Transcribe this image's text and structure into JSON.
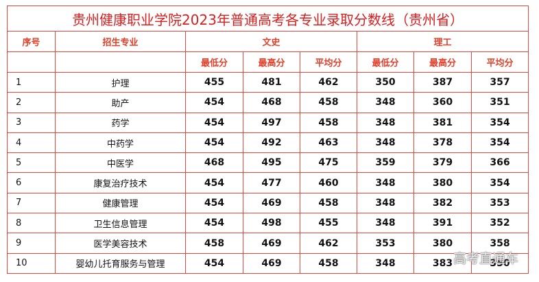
{
  "title": "贵州健康职业学院2023年普通高考各专业录取分数线（贵州省）",
  "header": {
    "row1": [
      "序号",
      "招生专业",
      "文史",
      "理工"
    ],
    "row2": [
      "最低分",
      "最高分",
      "平均分",
      "最低分",
      "最高分",
      "平均分"
    ]
  },
  "rows": [
    [
      1,
      "护理",
      455,
      481,
      462,
      350,
      387,
      357
    ],
    [
      2,
      "助产",
      454,
      468,
      458,
      348,
      360,
      351
    ],
    [
      3,
      "药学",
      454,
      497,
      458,
      348,
      381,
      354
    ],
    [
      4,
      "中药学",
      454,
      492,
      463,
      348,
      378,
      354
    ],
    [
      5,
      "中医学",
      468,
      495,
      475,
      359,
      379,
      366
    ],
    [
      6,
      "康复治疗技术",
      454,
      477,
      460,
      348,
      380,
      354
    ],
    [
      7,
      "健康管理",
      454,
      469,
      458,
      348,
      382,
      353
    ],
    [
      8,
      "卫生信息管理",
      454,
      498,
      455,
      348,
      391,
      352
    ],
    [
      9,
      "医学美容技术",
      458,
      469,
      462,
      353,
      380,
      358
    ],
    [
      10,
      "婴幼儿托育服务与管理",
      454,
      469,
      458,
      348,
      383,
      350
    ]
  ],
  "watermark": "高考直通车"
}
